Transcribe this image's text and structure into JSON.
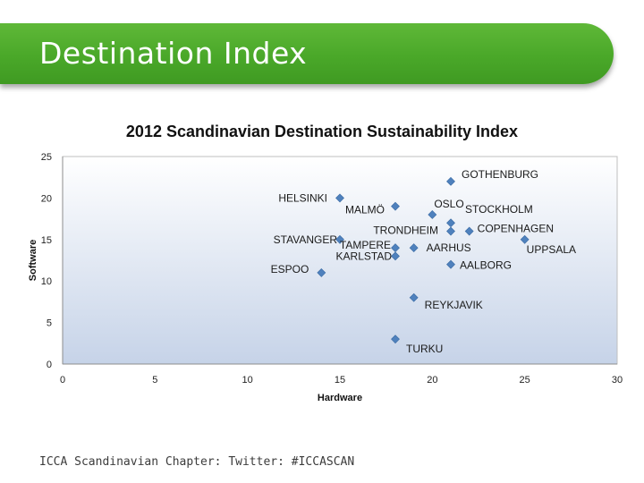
{
  "slide": {
    "title": "Destination Index",
    "footer": "ICCA Scandinavian Chapter: Twitter: #ICCASCAN"
  },
  "colors": {
    "banner": "#4aa829",
    "plot_bg_top": "#ffffff",
    "plot_bg_bottom": "#c6d3e8",
    "marker": "#4f81bd"
  },
  "chart_data": {
    "type": "scatter",
    "title": "2012 Scandinavian Destination Sustainability Index",
    "xlabel": "Hardware",
    "ylabel": "Software",
    "xlim": [
      0,
      30
    ],
    "ylim": [
      0,
      25
    ],
    "xticks": [
      0,
      5,
      10,
      15,
      20,
      25,
      30
    ],
    "yticks": [
      0,
      5,
      10,
      15,
      20,
      25
    ],
    "grid": false,
    "points": [
      {
        "label": "GOTHENBURG",
        "x": 21,
        "y": 22
      },
      {
        "label": "HELSINKI",
        "x": 15,
        "y": 20
      },
      {
        "label": "MALMÖ",
        "x": 18,
        "y": 19
      },
      {
        "label": "OSLO",
        "x": 20,
        "y": 18
      },
      {
        "label": "STOCKHOLM",
        "x": 21,
        "y": 17
      },
      {
        "label": "TRONDHEIM",
        "x": 21,
        "y": 16
      },
      {
        "label": "COPENHAGEN",
        "x": 22,
        "y": 16
      },
      {
        "label": "STAVANGER",
        "x": 15,
        "y": 15
      },
      {
        "label": "UPPSALA",
        "x": 25,
        "y": 15
      },
      {
        "label": "TAMPERE",
        "x": 18,
        "y": 14
      },
      {
        "label": "AARHUS",
        "x": 19,
        "y": 14
      },
      {
        "label": "KARLSTAD",
        "x": 18,
        "y": 13
      },
      {
        "label": "AALBORG",
        "x": 21,
        "y": 12
      },
      {
        "label": "ESPOO",
        "x": 14,
        "y": 11
      },
      {
        "label": "REYKJAVIK",
        "x": 19,
        "y": 8
      },
      {
        "label": "TURKU",
        "x": 18,
        "y": 3
      }
    ]
  }
}
